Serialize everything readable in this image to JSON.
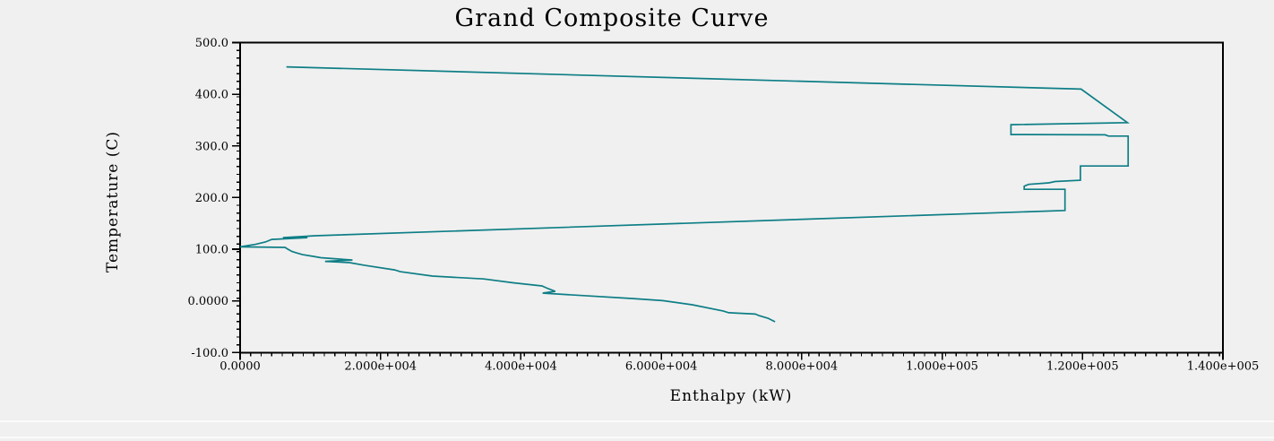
{
  "window": {
    "background": "#f0f0f0"
  },
  "chart": {
    "title": "Grand Composite Curve",
    "xlabel": "Enthalpy (kW)",
    "ylabel": "Temperature (C)",
    "line_color": "#0e7e86",
    "axis_color": "#000000"
  },
  "chart_data": {
    "type": "line",
    "title": "Grand Composite Curve",
    "xlabel": "Enthalpy (kW)",
    "ylabel": "Temperature (C)",
    "xlim": [
      0,
      140000
    ],
    "ylim": [
      -100,
      500
    ],
    "grid": false,
    "legend": null,
    "x_major_ticks": [
      0,
      20000,
      40000,
      60000,
      80000,
      100000,
      120000,
      140000
    ],
    "x_tick_labels": [
      "0.0000",
      "2.000e+004",
      "4.000e+004",
      "6.000e+004",
      "8.000e+004",
      "1.000e+005",
      "1.200e+005",
      "1.400e+005"
    ],
    "y_major_ticks": [
      500,
      400,
      300,
      200,
      100,
      0,
      -100
    ],
    "y_tick_labels": [
      "500.0",
      "400.0",
      "300.0",
      "200.0",
      "100.0",
      "0.0000",
      "-100.0"
    ],
    "x_minor_step": 1500,
    "y_minor_step": 15,
    "series": [
      {
        "name": "Grand Composite Curve",
        "color": "#0e7e86",
        "points": [
          [
            6600,
            453
          ],
          [
            119800,
            410
          ],
          [
            126400,
            345
          ],
          [
            109800,
            341
          ],
          [
            109800,
            322
          ],
          [
            123200,
            321.5
          ],
          [
            123700,
            319
          ],
          [
            126500,
            319
          ],
          [
            126500,
            261
          ],
          [
            119700,
            261
          ],
          [
            119700,
            233.5
          ],
          [
            116100,
            231
          ],
          [
            115200,
            228.5
          ],
          [
            112300,
            225.5
          ],
          [
            111700,
            222
          ],
          [
            111700,
            216
          ],
          [
            117500,
            216
          ],
          [
            117500,
            175
          ],
          [
            10700,
            126
          ],
          [
            6100,
            122.5
          ],
          [
            9600,
            122.5
          ],
          [
            4500,
            119
          ],
          [
            3600,
            114
          ],
          [
            2200,
            109.5
          ],
          [
            300,
            105.5
          ],
          [
            0,
            104.5
          ],
          [
            6400,
            103.5
          ],
          [
            6800,
            100
          ],
          [
            7400,
            95.5
          ],
          [
            8000,
            93
          ],
          [
            8900,
            89.5
          ],
          [
            10500,
            86
          ],
          [
            11500,
            83.5
          ],
          [
            16000,
            79
          ],
          [
            12100,
            76.5
          ],
          [
            15600,
            74
          ],
          [
            17700,
            69
          ],
          [
            22000,
            60
          ],
          [
            22800,
            56.5
          ],
          [
            27400,
            48
          ],
          [
            34700,
            42.5
          ],
          [
            38900,
            35
          ],
          [
            43000,
            29
          ],
          [
            43900,
            23.5
          ],
          [
            44900,
            18.5
          ],
          [
            43100,
            15
          ],
          [
            46200,
            12.5
          ],
          [
            56000,
            4.5
          ],
          [
            60200,
            0.5
          ],
          [
            64400,
            -7.5
          ],
          [
            68800,
            -19.5
          ],
          [
            69600,
            -23
          ],
          [
            73400,
            -25.5
          ],
          [
            73900,
            -28.5
          ],
          [
            75200,
            -33.5
          ],
          [
            76200,
            -40.5
          ]
        ]
      }
    ]
  }
}
